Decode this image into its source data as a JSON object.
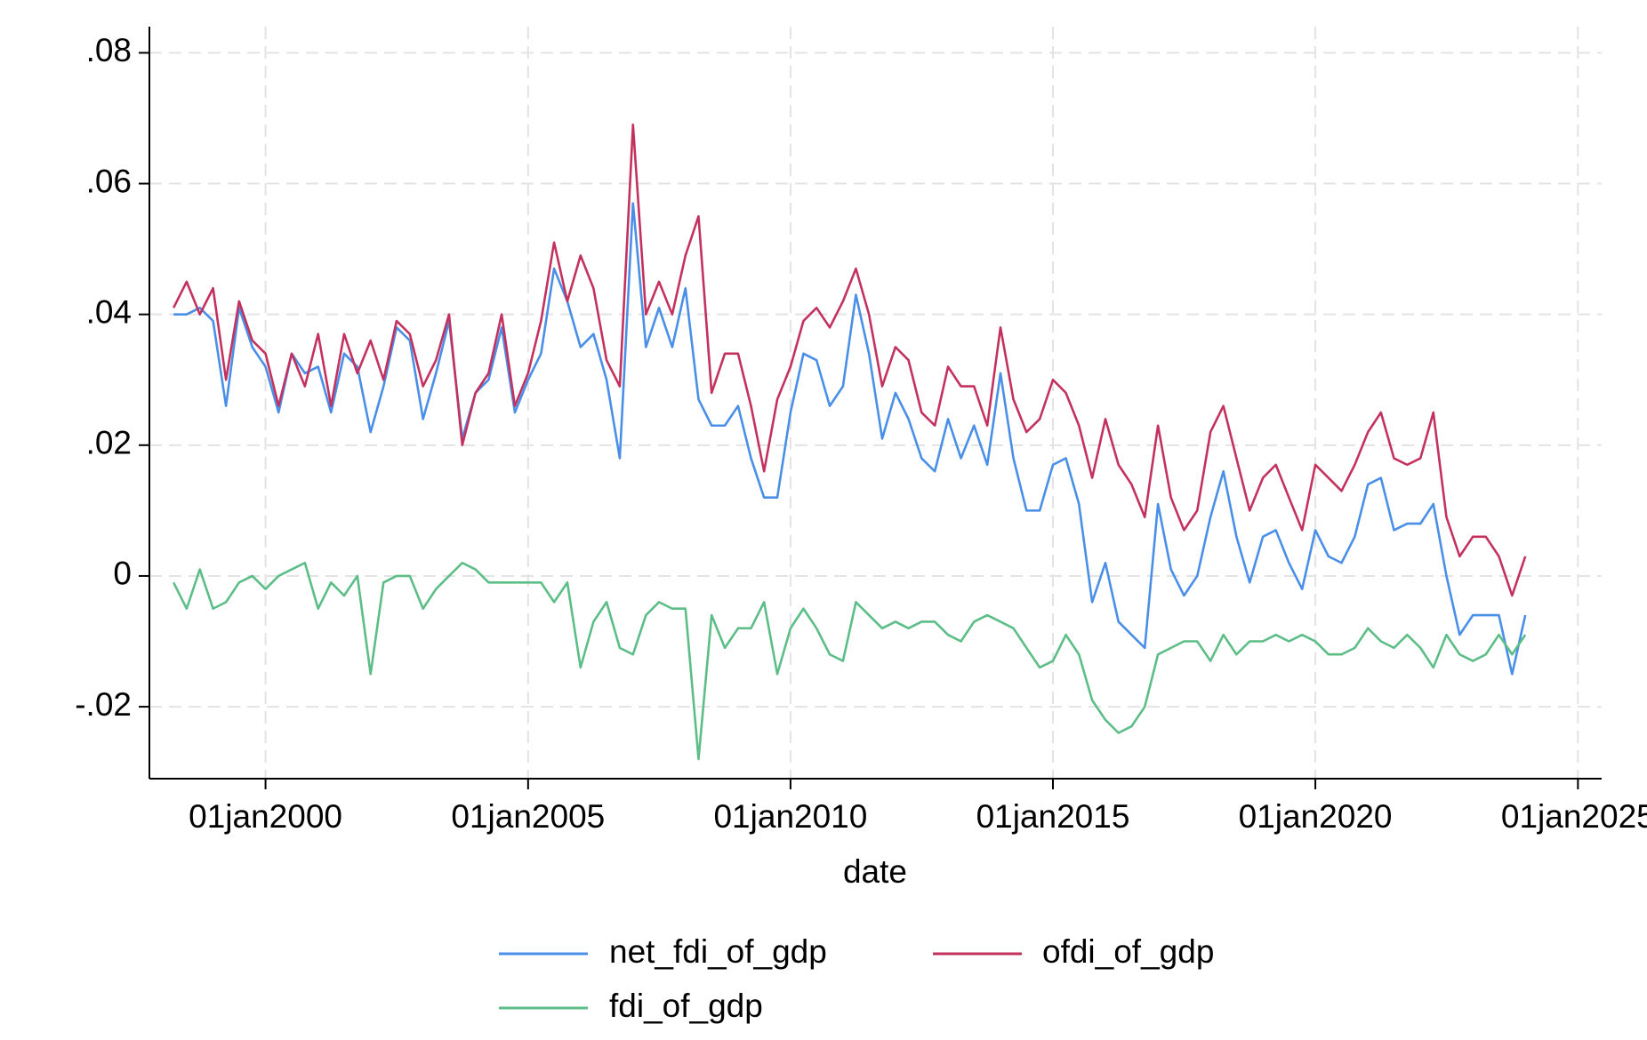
{
  "chart_data": {
    "type": "line",
    "x_label": "date",
    "x": [
      "1998-04-01",
      "1998-07-01",
      "1998-10-01",
      "1999-01-01",
      "1999-04-01",
      "1999-07-01",
      "1999-10-01",
      "2000-01-01",
      "2000-04-01",
      "2000-07-01",
      "2000-10-01",
      "2001-01-01",
      "2001-04-01",
      "2001-07-01",
      "2001-10-01",
      "2002-01-01",
      "2002-04-01",
      "2002-07-01",
      "2002-10-01",
      "2003-01-01",
      "2003-04-01",
      "2003-07-01",
      "2003-10-01",
      "2004-01-01",
      "2004-04-01",
      "2004-07-01",
      "2004-10-01",
      "2005-01-01",
      "2005-04-01",
      "2005-07-01",
      "2005-10-01",
      "2006-01-01",
      "2006-04-01",
      "2006-07-01",
      "2006-10-01",
      "2007-01-01",
      "2007-04-01",
      "2007-07-01",
      "2007-10-01",
      "2008-01-01",
      "2008-04-01",
      "2008-07-01",
      "2008-10-01",
      "2009-01-01",
      "2009-04-01",
      "2009-07-01",
      "2009-10-01",
      "2010-01-01",
      "2010-04-01",
      "2010-07-01",
      "2010-10-01",
      "2011-01-01",
      "2011-04-01",
      "2011-07-01",
      "2011-10-01",
      "2012-01-01",
      "2012-04-01",
      "2012-07-01",
      "2012-10-01",
      "2013-01-01",
      "2013-04-01",
      "2013-07-01",
      "2013-10-01",
      "2014-01-01",
      "2014-04-01",
      "2014-07-01",
      "2014-10-01",
      "2015-01-01",
      "2015-04-01",
      "2015-07-01",
      "2015-10-01",
      "2016-01-01",
      "2016-04-01",
      "2016-07-01",
      "2016-10-01",
      "2017-01-01",
      "2017-04-01",
      "2017-07-01",
      "2017-10-01",
      "2018-01-01",
      "2018-04-01",
      "2018-07-01",
      "2018-10-01",
      "2019-01-01",
      "2019-04-01",
      "2019-07-01",
      "2019-10-01",
      "2020-01-01",
      "2020-04-01",
      "2020-07-01",
      "2020-10-01",
      "2021-01-01",
      "2021-04-01",
      "2021-07-01",
      "2021-10-01",
      "2022-01-01",
      "2022-04-01",
      "2022-07-01",
      "2022-10-01",
      "2023-01-01",
      "2023-04-01",
      "2023-07-01",
      "2023-10-01",
      "2024-01-01"
    ],
    "xlim": [
      "1997-10-15",
      "2025-06-15"
    ],
    "xticks": [
      {
        "value": "2000-01-01",
        "label": "01jan2000"
      },
      {
        "value": "2005-01-01",
        "label": "01jan2005"
      },
      {
        "value": "2010-01-01",
        "label": "01jan2010"
      },
      {
        "value": "2015-01-01",
        "label": "01jan2015"
      },
      {
        "value": "2020-01-01",
        "label": "01jan2020"
      },
      {
        "value": "2025-01-01",
        "label": "01jan2025"
      }
    ],
    "ylim": [
      -0.031,
      0.084
    ],
    "yticks": [
      {
        "value": -0.02,
        "label": "-.02"
      },
      0,
      {
        "value": 0.02,
        "label": ".02"
      },
      {
        "value": 0.04,
        "label": ".04"
      },
      {
        "value": 0.06,
        "label": ".06"
      },
      {
        "value": 0.08,
        "label": ".08"
      }
    ],
    "grid": true,
    "legend": "bottom",
    "series": [
      {
        "name": "net_fdi_of_gdp",
        "color": "#4a8fe7",
        "values": [
          0.04,
          0.04,
          0.041,
          0.039,
          0.026,
          0.041,
          0.035,
          0.032,
          0.025,
          0.034,
          0.031,
          0.032,
          0.025,
          0.034,
          0.032,
          0.022,
          0.029,
          0.038,
          0.036,
          0.024,
          0.031,
          0.039,
          0.021,
          0.028,
          0.03,
          0.038,
          0.025,
          0.03,
          0.034,
          0.047,
          0.042,
          0.035,
          0.037,
          0.03,
          0.018,
          0.057,
          0.035,
          0.041,
          0.035,
          0.044,
          0.027,
          0.023,
          0.023,
          0.026,
          0.018,
          0.012,
          0.012,
          0.025,
          0.034,
          0.033,
          0.026,
          0.029,
          0.043,
          0.034,
          0.021,
          0.028,
          0.024,
          0.018,
          0.016,
          0.024,
          0.018,
          0.023,
          0.017,
          0.031,
          0.018,
          0.01,
          0.01,
          0.017,
          0.018,
          0.011,
          -0.004,
          0.002,
          -0.007,
          -0.009,
          -0.011,
          0.011,
          0.001,
          -0.003,
          0.0,
          0.009,
          0.016,
          0.006,
          -0.001,
          0.006,
          0.007,
          0.002,
          -0.002,
          0.007,
          0.003,
          0.002,
          0.006,
          0.014,
          0.015,
          0.007,
          0.008,
          0.008,
          0.011,
          0.0,
          -0.009,
          -0.006,
          -0.006,
          -0.006,
          -0.015,
          -0.006
        ]
      },
      {
        "name": "ofdi_of_gdp",
        "color": "#c3325f",
        "values": [
          0.041,
          0.045,
          0.04,
          0.044,
          0.03,
          0.042,
          0.036,
          0.034,
          0.026,
          0.034,
          0.029,
          0.037,
          0.026,
          0.037,
          0.031,
          0.036,
          0.03,
          0.039,
          0.037,
          0.029,
          0.033,
          0.04,
          0.02,
          0.028,
          0.031,
          0.04,
          0.026,
          0.031,
          0.039,
          0.051,
          0.042,
          0.049,
          0.044,
          0.033,
          0.029,
          0.069,
          0.04,
          0.045,
          0.04,
          0.049,
          0.055,
          0.028,
          0.034,
          0.034,
          0.026,
          0.016,
          0.027,
          0.032,
          0.039,
          0.041,
          0.038,
          0.042,
          0.047,
          0.04,
          0.029,
          0.035,
          0.033,
          0.025,
          0.023,
          0.032,
          0.029,
          0.029,
          0.023,
          0.038,
          0.027,
          0.022,
          0.024,
          0.03,
          0.028,
          0.023,
          0.015,
          0.024,
          0.017,
          0.014,
          0.009,
          0.023,
          0.012,
          0.007,
          0.01,
          0.022,
          0.026,
          0.018,
          0.01,
          0.015,
          0.017,
          0.012,
          0.007,
          0.017,
          0.015,
          0.013,
          0.017,
          0.022,
          0.025,
          0.018,
          0.017,
          0.018,
          0.025,
          0.009,
          0.003,
          0.006,
          0.006,
          0.003,
          -0.003,
          0.003
        ]
      },
      {
        "name": "fdi_of_gdp",
        "color": "#5cbd87",
        "values": [
          -0.001,
          -0.005,
          0.001,
          -0.005,
          -0.004,
          -0.001,
          0.0,
          -0.002,
          0.0,
          0.001,
          0.002,
          -0.005,
          -0.001,
          -0.003,
          0.0,
          -0.015,
          -0.001,
          0.0,
          0.0,
          -0.005,
          -0.002,
          0.0,
          0.002,
          0.001,
          -0.001,
          -0.001,
          -0.001,
          -0.001,
          -0.001,
          -0.004,
          -0.001,
          -0.014,
          -0.007,
          -0.004,
          -0.011,
          -0.012,
          -0.006,
          -0.004,
          -0.005,
          -0.005,
          -0.028,
          -0.006,
          -0.011,
          -0.008,
          -0.008,
          -0.004,
          -0.015,
          -0.008,
          -0.005,
          -0.008,
          -0.012,
          -0.013,
          -0.004,
          -0.006,
          -0.008,
          -0.007,
          -0.008,
          -0.007,
          -0.007,
          -0.009,
          -0.01,
          -0.007,
          -0.006,
          -0.007,
          -0.008,
          -0.011,
          -0.014,
          -0.013,
          -0.009,
          -0.012,
          -0.019,
          -0.022,
          -0.024,
          -0.023,
          -0.02,
          -0.012,
          -0.011,
          -0.01,
          -0.01,
          -0.013,
          -0.009,
          -0.012,
          -0.01,
          -0.01,
          -0.009,
          -0.01,
          -0.009,
          -0.01,
          -0.012,
          -0.012,
          -0.011,
          -0.008,
          -0.01,
          -0.011,
          -0.009,
          -0.011,
          -0.014,
          -0.009,
          -0.012,
          -0.013,
          -0.012,
          -0.009,
          -0.012,
          -0.009
        ]
      }
    ]
  }
}
